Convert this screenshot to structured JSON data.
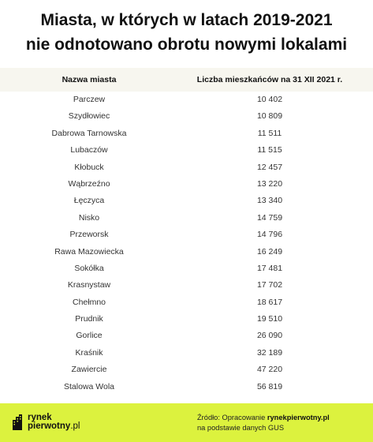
{
  "title": {
    "line1": "Miasta, w których w latach 2019-2021",
    "line2": "nie odnotowano obrotu nowymi lokalami"
  },
  "table": {
    "headers": [
      "Nazwa miasta",
      "Liczba mieszkańców na 31 XII 2021 r."
    ],
    "rows": [
      [
        "Parczew",
        "10 402"
      ],
      [
        "Szydłowiec",
        "10 809"
      ],
      [
        "Dabrowa Tarnowska",
        "11 511"
      ],
      [
        "Lubaczów",
        "11 515"
      ],
      [
        "Kłobuck",
        "12 457"
      ],
      [
        "Wąbrzeźno",
        "13 220"
      ],
      [
        "Łęczyca",
        "13 340"
      ],
      [
        "Nisko",
        "14 759"
      ],
      [
        "Przeworsk",
        "14 796"
      ],
      [
        "Rawa Mazowiecka",
        "16 249"
      ],
      [
        "Sokółka",
        "17 481"
      ],
      [
        "Krasnystaw",
        "17 702"
      ],
      [
        "Chełmno",
        "18 617"
      ],
      [
        "Prudnik",
        "19 510"
      ],
      [
        "Gorlice",
        "26 090"
      ],
      [
        "Kraśnik",
        "32 189"
      ],
      [
        "Zawiercie",
        "47 220"
      ],
      [
        "Stalowa Wola",
        "56 819"
      ]
    ]
  },
  "footer": {
    "logo_line1": "rynek",
    "logo_line2_bold": "pierwotny",
    "logo_line2_suffix": ".pl",
    "source_prefix": "Źródło: Opracowanie ",
    "source_bold": "rynekpierwotny.pl",
    "source_line2": "na podstawie danych GUS"
  },
  "colors": {
    "footer_bg": "#dcf23e",
    "header_bg": "#f7f6ef"
  }
}
